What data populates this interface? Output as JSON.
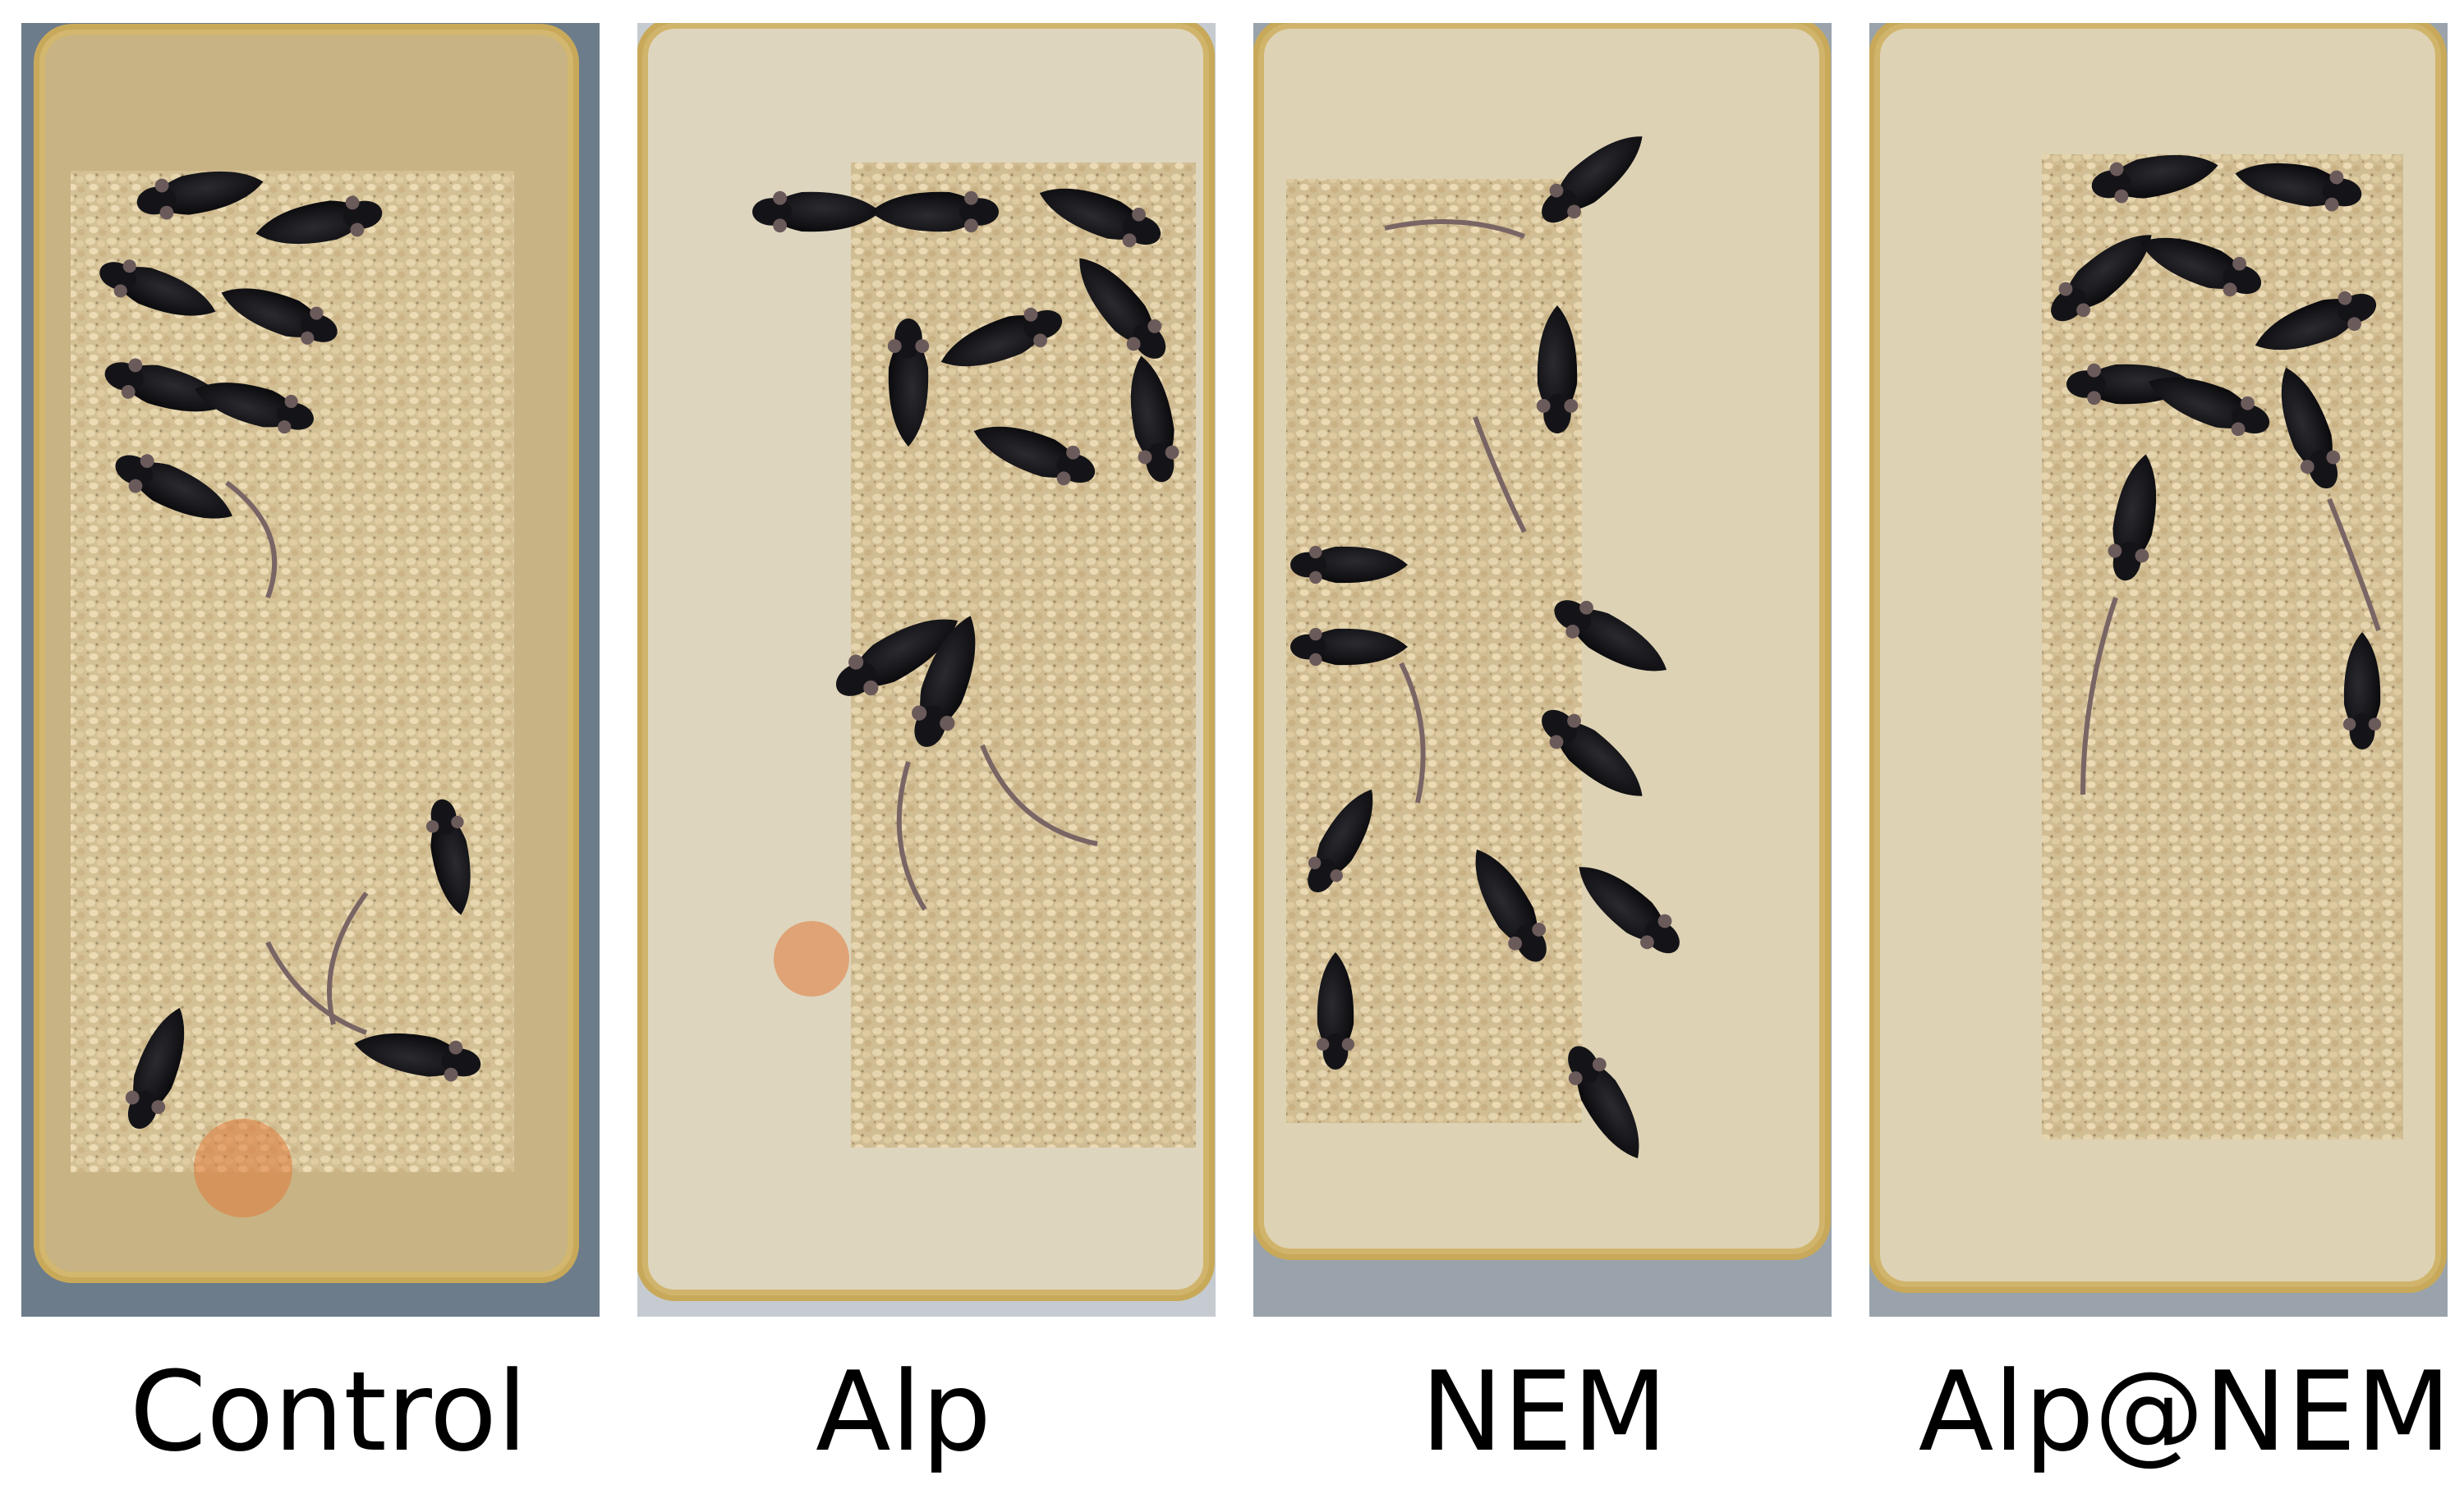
{
  "figure": {
    "panels": [
      {
        "label": "Control"
      },
      {
        "label": "Alp"
      },
      {
        "label": "NEM"
      },
      {
        "label": "Alp@NEM"
      }
    ]
  }
}
